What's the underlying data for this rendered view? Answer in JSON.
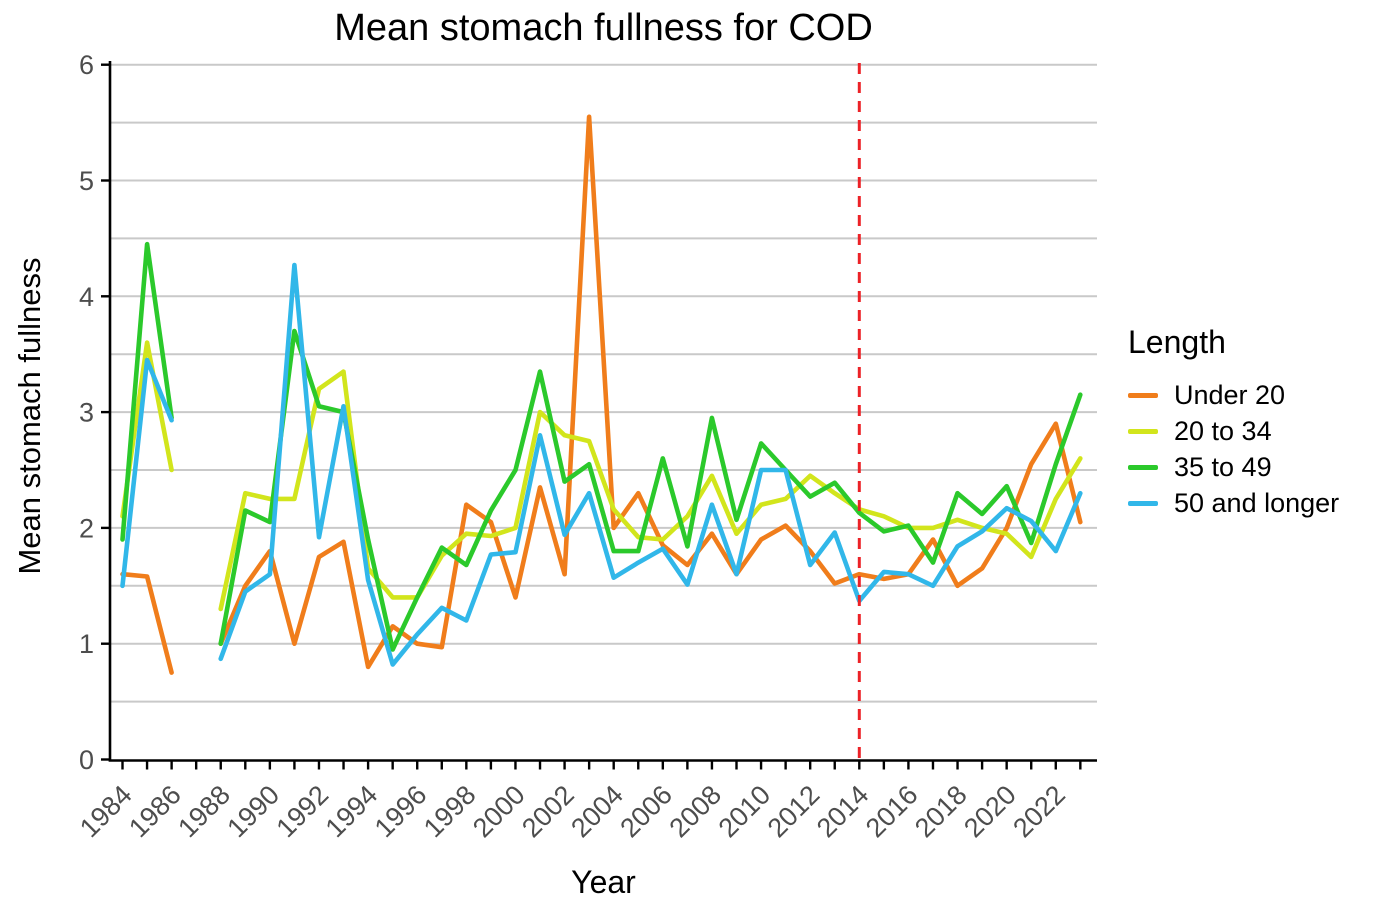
{
  "title": "Mean stomach fullness for COD",
  "x_axis": {
    "label": "Year",
    "tick_years": [
      1984,
      1986,
      1988,
      1990,
      1992,
      1994,
      1996,
      1998,
      2000,
      2002,
      2004,
      2006,
      2008,
      2010,
      2012,
      2014,
      2016,
      2018,
      2020,
      2022
    ]
  },
  "y_axis": {
    "label": "Mean stomach fullness",
    "min": 0,
    "max": 6,
    "tick_step": 1,
    "grid_step": 0.5
  },
  "legend": {
    "title": "Length",
    "items": [
      {
        "label": "Under 20",
        "color": "#F07D1B"
      },
      {
        "label": "20 to 34",
        "color": "#D2E51C"
      },
      {
        "label": "35 to 49",
        "color": "#2BC92B"
      },
      {
        "label": "50 and longer",
        "color": "#31B7E9"
      }
    ]
  },
  "reference_line": {
    "x": 2014,
    "color": "#EC2227",
    "style": "dashed"
  },
  "colors": {
    "grid": "#C9C9C9",
    "spine": "#000000",
    "tick": "#000000",
    "tick_label": "#4D4D4D"
  },
  "chart_data": {
    "type": "line",
    "title": "Mean stomach fullness for COD",
    "xlabel": "Year",
    "ylabel": "Mean stomach fullness",
    "ylim": [
      0,
      6
    ],
    "grid": "on",
    "legend_position": "right",
    "note": "vertical red dashed reference line at year 2014; no data for 1987 (gap in all series)",
    "x": [
      1984,
      1985,
      1986,
      1987,
      1988,
      1989,
      1990,
      1991,
      1992,
      1993,
      1994,
      1995,
      1996,
      1997,
      1998,
      1999,
      2000,
      2001,
      2002,
      2003,
      2004,
      2005,
      2006,
      2007,
      2008,
      2009,
      2010,
      2011,
      2012,
      2013,
      2014,
      2015,
      2016,
      2017,
      2018,
      2019,
      2020,
      2021,
      2022,
      2023
    ],
    "series": [
      {
        "name": "Under 20",
        "color": "#F07D1B",
        "values": [
          1.6,
          1.58,
          0.75,
          null,
          1.0,
          1.5,
          1.8,
          1.0,
          1.75,
          1.88,
          0.8,
          1.15,
          1.0,
          0.97,
          2.2,
          2.05,
          1.4,
          2.35,
          1.6,
          5.55,
          2.0,
          2.3,
          1.85,
          1.68,
          1.95,
          1.6,
          1.9,
          2.02,
          1.8,
          1.52,
          1.6,
          1.56,
          1.6,
          1.9,
          1.5,
          1.65,
          2.0,
          2.55,
          2.9,
          2.05
        ]
      },
      {
        "name": "20 to 34",
        "color": "#D2E51C",
        "values": [
          2.1,
          3.6,
          2.5,
          null,
          1.3,
          2.3,
          2.25,
          2.25,
          3.2,
          3.35,
          1.65,
          1.4,
          1.4,
          1.76,
          1.95,
          1.93,
          2.0,
          3.0,
          2.8,
          2.75,
          2.16,
          1.92,
          1.9,
          2.1,
          2.45,
          1.95,
          2.2,
          2.25,
          2.45,
          2.3,
          2.16,
          2.1,
          2.0,
          2.0,
          2.07,
          2.0,
          1.95,
          1.75,
          2.25,
          2.6
        ]
      },
      {
        "name": "35 to 49",
        "color": "#2BC92B",
        "values": [
          1.9,
          4.45,
          2.95,
          null,
          1.0,
          2.15,
          2.05,
          3.7,
          3.05,
          3.0,
          1.9,
          0.95,
          1.4,
          1.83,
          1.68,
          2.15,
          2.5,
          3.35,
          2.4,
          2.55,
          1.8,
          1.8,
          2.6,
          1.84,
          2.95,
          2.07,
          2.73,
          2.5,
          2.27,
          2.39,
          2.13,
          1.97,
          2.02,
          1.7,
          2.3,
          2.12,
          2.36,
          1.87,
          2.55,
          3.15
        ]
      },
      {
        "name": "50 and longer",
        "color": "#31B7E9",
        "values": [
          1.5,
          3.45,
          2.93,
          null,
          0.87,
          1.45,
          1.6,
          4.27,
          1.92,
          3.05,
          1.55,
          0.82,
          1.08,
          1.31,
          1.2,
          1.77,
          1.79,
          2.8,
          1.94,
          2.3,
          1.57,
          1.7,
          1.82,
          1.51,
          2.2,
          1.6,
          2.5,
          2.5,
          1.68,
          1.96,
          1.37,
          1.62,
          1.6,
          1.5,
          1.84,
          1.97,
          2.17,
          2.06,
          1.8,
          2.3
        ]
      }
    ]
  }
}
